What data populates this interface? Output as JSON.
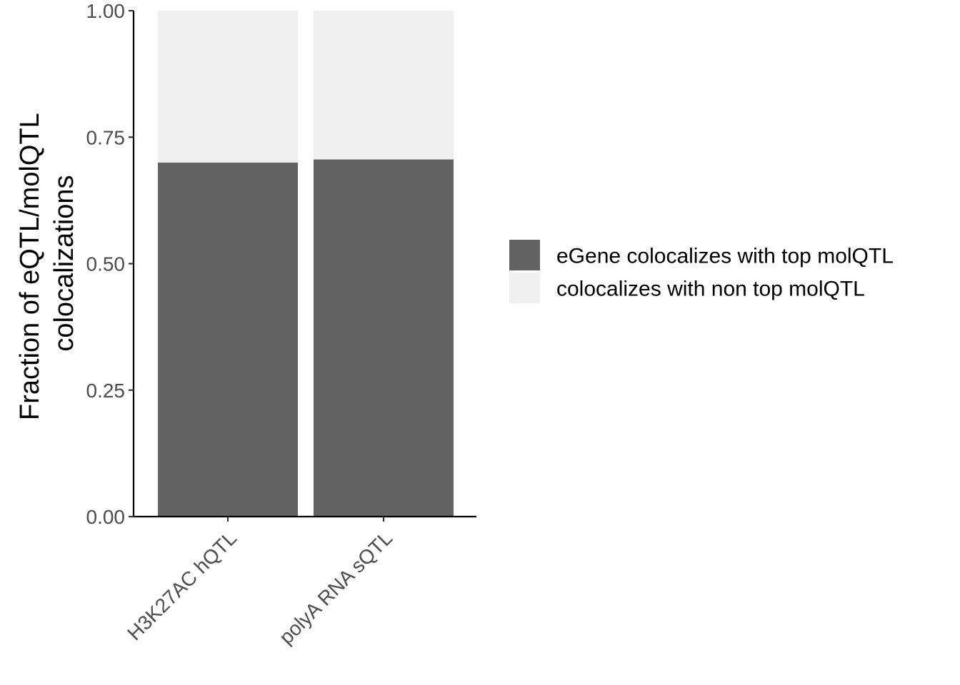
{
  "chart_data": {
    "type": "bar",
    "stacked": true,
    "categories": [
      "H3K27AC hQTL",
      "polyA RNA sQTL"
    ],
    "series": [
      {
        "name": "eGene colocalizes with top molQTL",
        "values": [
          0.7,
          0.706
        ],
        "color": "#636363"
      },
      {
        "name": "colocalizes with non top molQTL",
        "values": [
          0.3,
          0.294
        ],
        "color": "#efefef"
      }
    ],
    "ylabel_lines": [
      "Fraction of eQTL/molQTL",
      "colocalizations"
    ],
    "xlabel": "",
    "ylim": [
      0,
      1
    ],
    "yticks": [
      0,
      0.25,
      0.5,
      0.75,
      1
    ],
    "ytick_labels": [
      "0.00",
      "0.25",
      "0.50",
      "0.75",
      "1.00"
    ],
    "x_tick_rotation_deg": 45,
    "grid": false,
    "legend_position": "right"
  }
}
